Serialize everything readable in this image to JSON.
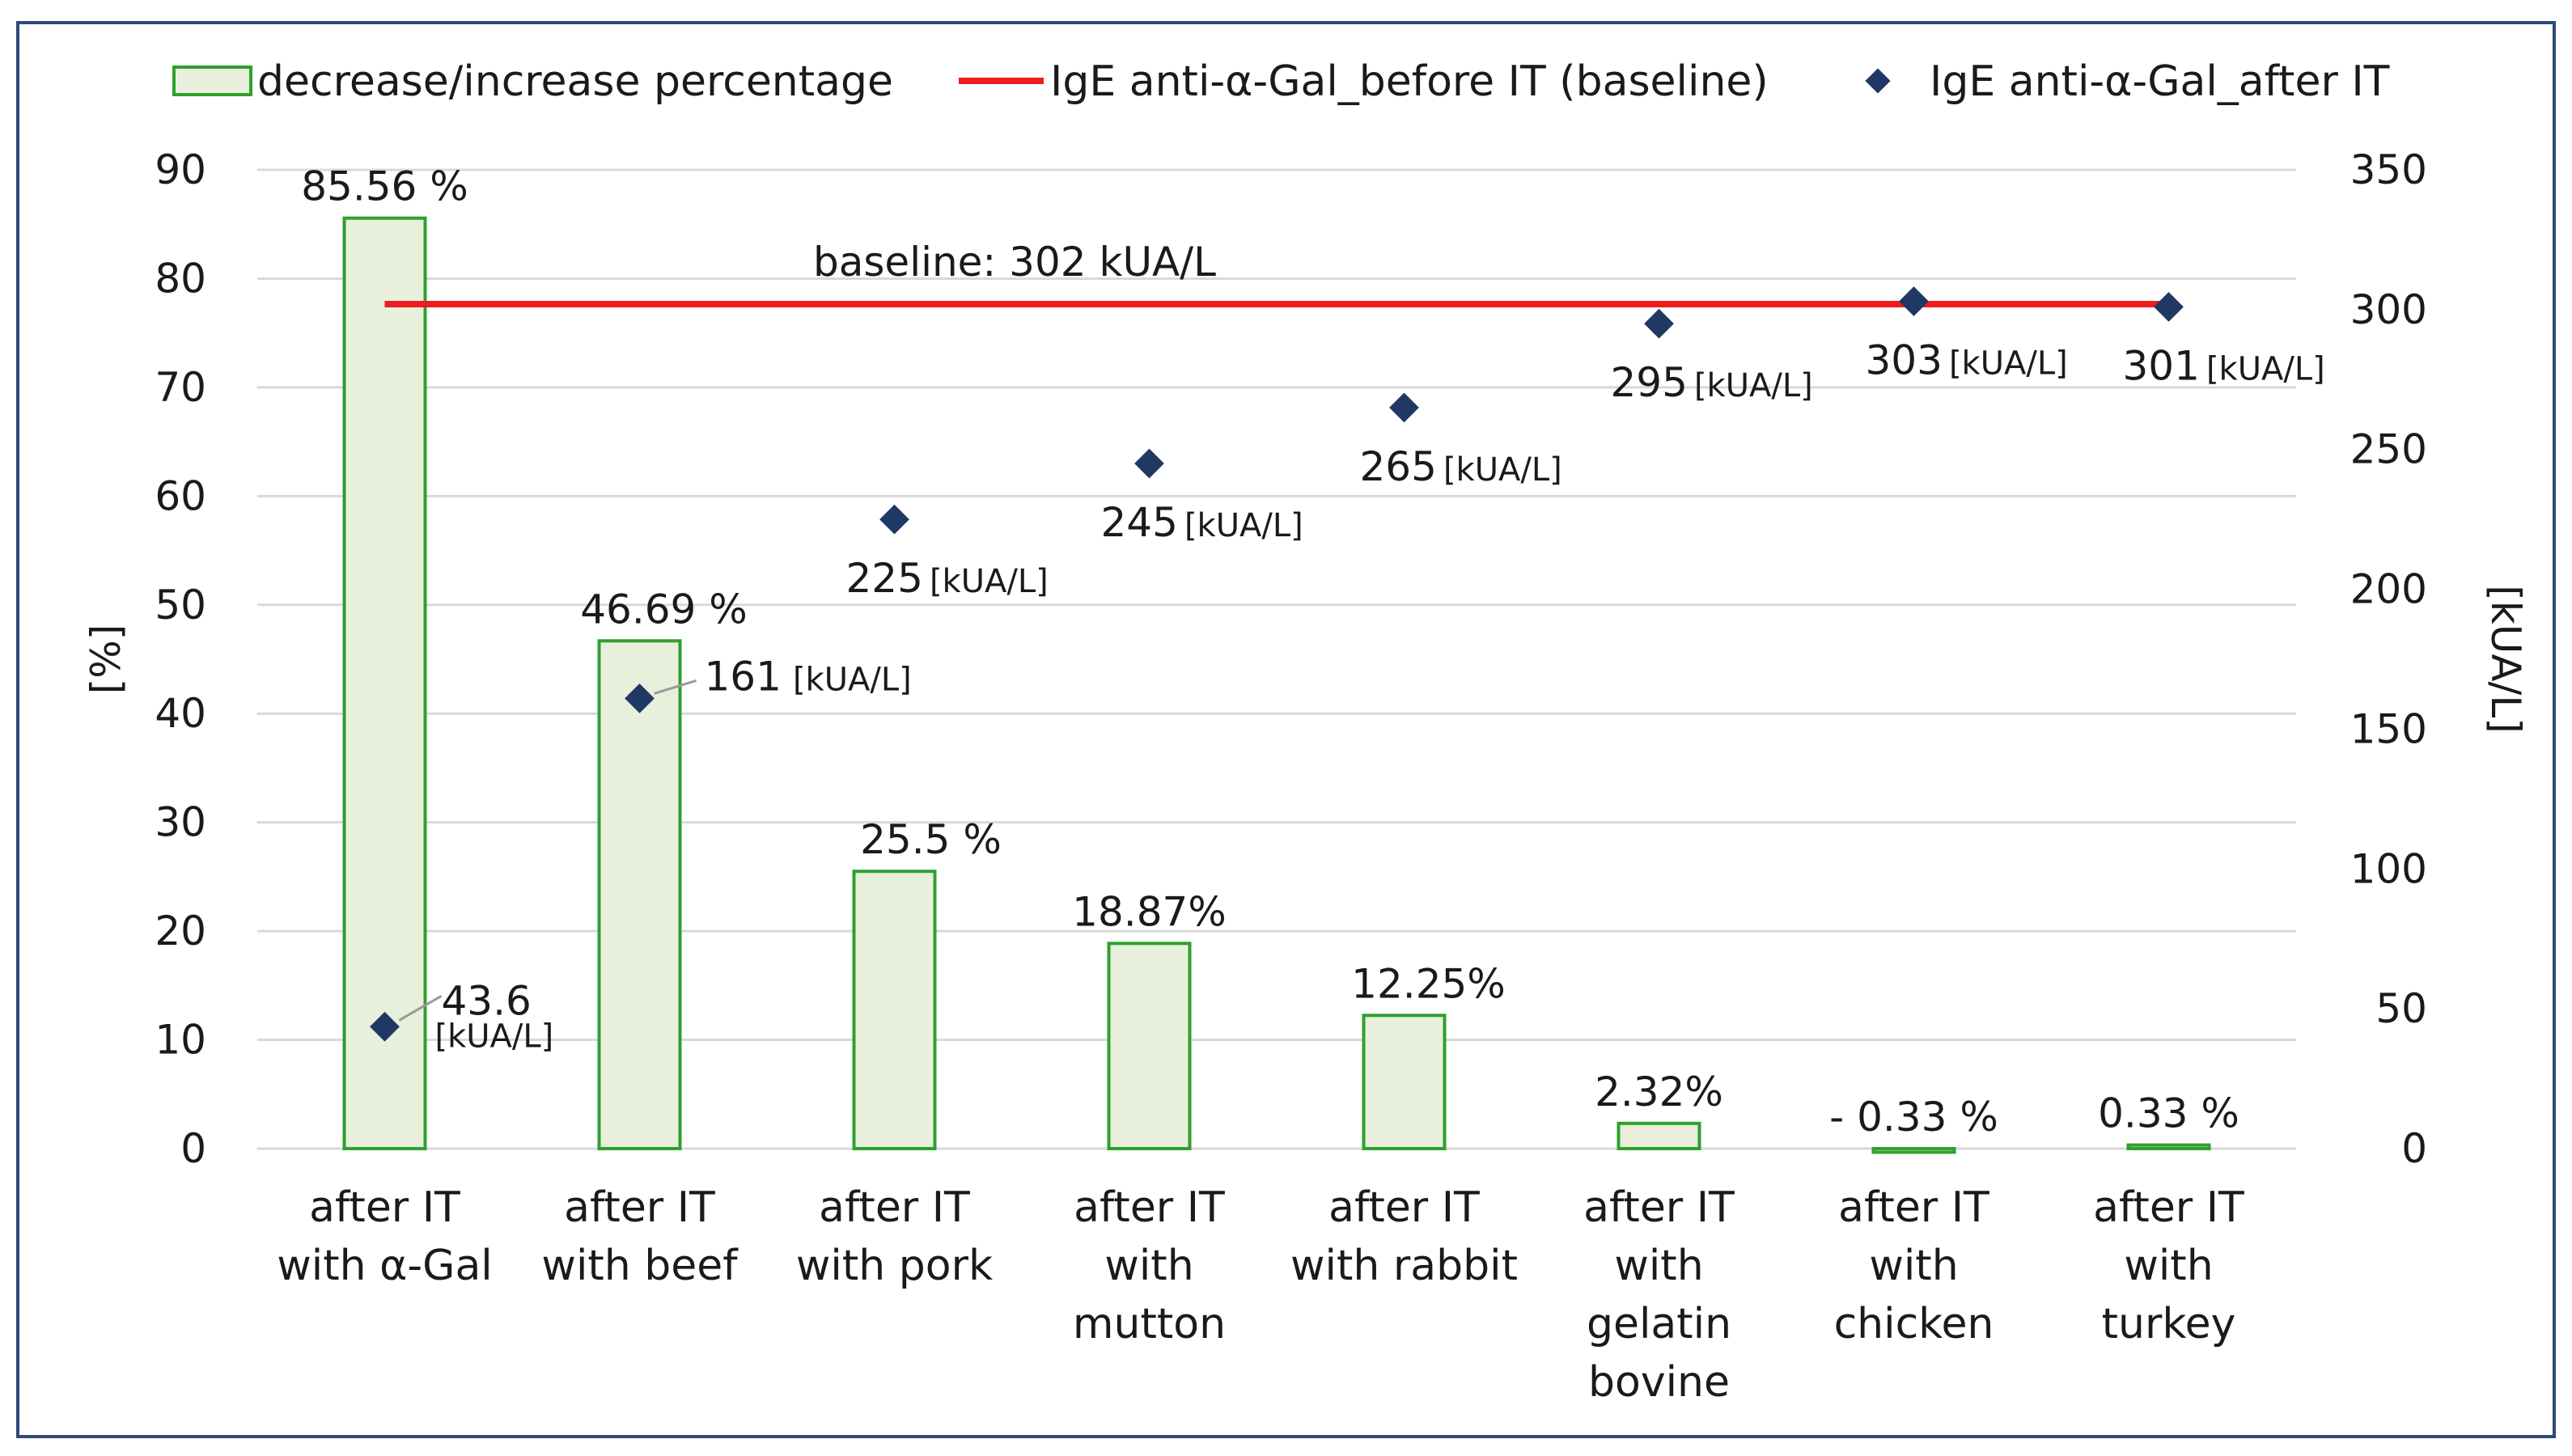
{
  "chart_data": {
    "type": "bar",
    "categories": [
      [
        "after IT",
        "with α-Gal"
      ],
      [
        "after IT",
        "with beef"
      ],
      [
        "after IT",
        "with pork"
      ],
      [
        "after IT",
        "with",
        "mutton"
      ],
      [
        "after IT",
        "with rabbit"
      ],
      [
        "after IT",
        "with",
        "gelatin",
        "bovine"
      ],
      [
        "after IT",
        "with",
        "chicken"
      ],
      [
        "after IT",
        "with",
        "turkey"
      ]
    ],
    "series": [
      {
        "name": "decrease/increase percentage",
        "axis": "left",
        "kind": "bar",
        "color": "#e8f0dc",
        "edge_color": "#2ea02e",
        "values": [
          85.56,
          46.69,
          25.5,
          18.87,
          12.25,
          2.32,
          -0.33,
          0.33
        ],
        "labels": [
          "85.56 %",
          "46.69 %",
          "25.5 %",
          "18.87%",
          "12.25%",
          "2.32%",
          "- 0.33 %",
          "0.33 %"
        ]
      },
      {
        "name": "IgE anti-α-Gal_before IT (baseline)",
        "axis": "right",
        "kind": "line",
        "color": "#ee1c1c",
        "value": 302,
        "annotation": "baseline: 302 kUA/L"
      },
      {
        "name": "IgE anti-α-Gal_after IT",
        "axis": "right",
        "kind": "scatter",
        "color": "#1f3864",
        "values": [
          43.6,
          161,
          225,
          245,
          265,
          295,
          303,
          301
        ],
        "labels": [
          "43.6",
          "161",
          "225",
          "245",
          "265",
          "295",
          "303",
          "301"
        ],
        "unit_label": "[kUA/L]"
      }
    ],
    "ylabel_left": "[%]",
    "ylabel_right": "[kUA/L]",
    "ylim_left": [
      0,
      90
    ],
    "ylim_right": [
      0,
      350
    ],
    "yticks_left": [
      "0",
      "10",
      "20",
      "30",
      "40",
      "50",
      "60",
      "70",
      "80",
      "90"
    ],
    "yticks_right": [
      "0",
      "50",
      "100",
      "150",
      "200",
      "250",
      "300",
      "350"
    ],
    "grid": true,
    "legend_position": "top"
  }
}
